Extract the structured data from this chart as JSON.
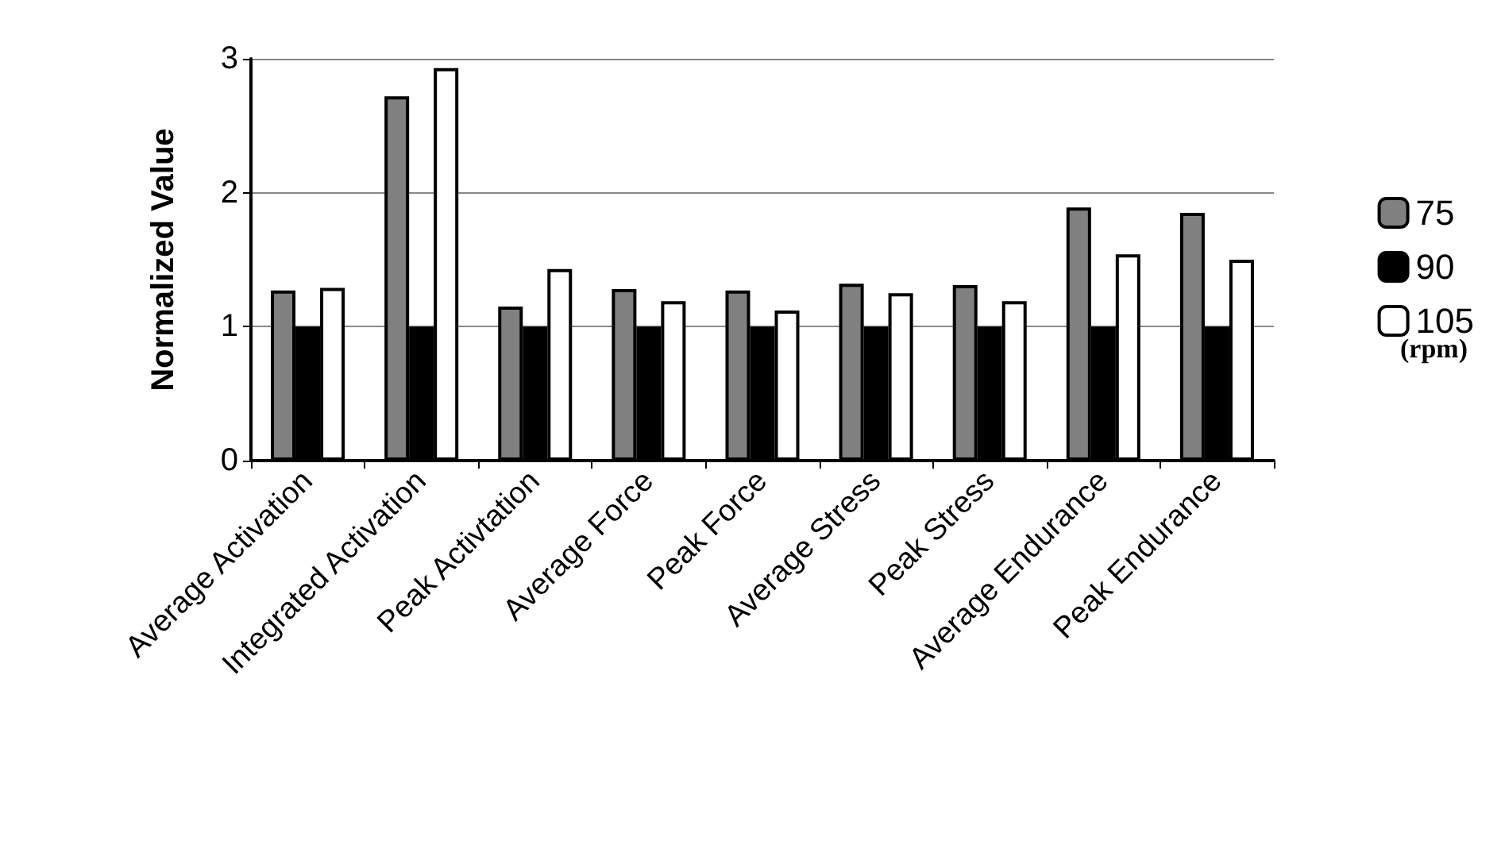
{
  "chart_data": {
    "type": "bar",
    "ylabel": "Normalized Value",
    "legend_title": "(rpm)",
    "categories": [
      "Average Activation",
      "Integrated Activation",
      "Peak Activtation",
      "Average Force",
      "Peak Force",
      "Average Stress",
      "Peak Stress",
      "Average Endurance",
      "Peak Endurance"
    ],
    "series": [
      {
        "name": "75",
        "color": "#808080",
        "values": [
          1.27,
          2.72,
          1.15,
          1.28,
          1.27,
          1.32,
          1.31,
          1.89,
          1.85
        ]
      },
      {
        "name": "90",
        "color": "#000000",
        "values": [
          1,
          1,
          1,
          1,
          1,
          1,
          1,
          1,
          1
        ]
      },
      {
        "name": "105",
        "color": "#ffffff",
        "values": [
          1.29,
          2.93,
          1.43,
          1.19,
          1.12,
          1.25,
          1.19,
          1.54,
          1.5
        ]
      }
    ],
    "ylim": [
      0,
      3
    ],
    "yticks": [
      0,
      1,
      2,
      3
    ],
    "grid": "y",
    "legend": "right"
  }
}
